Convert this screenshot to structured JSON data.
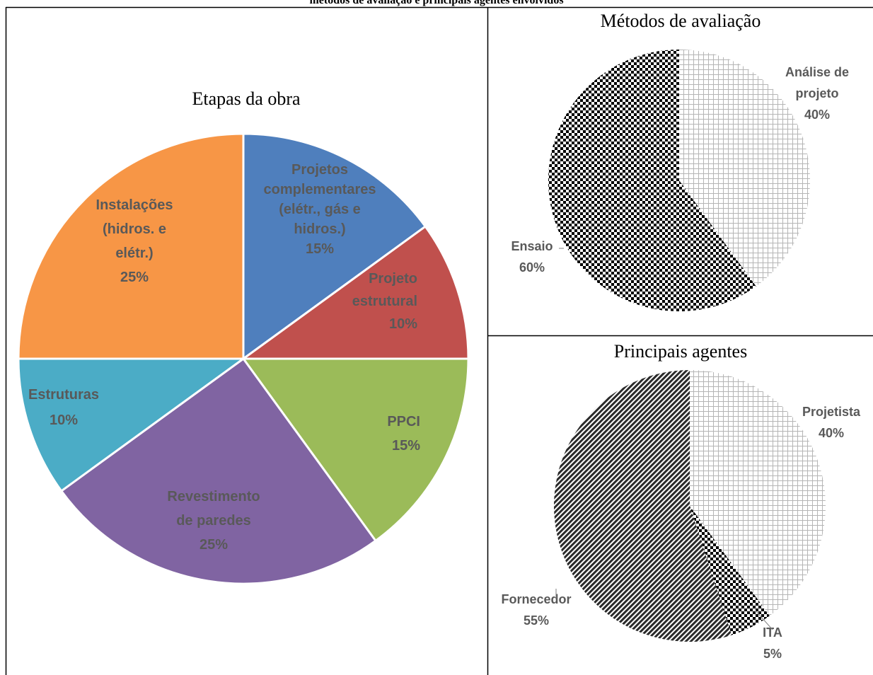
{
  "figure_caption": "métodos de avaliação e principais agentes envolvidos",
  "colors": {
    "projetos_complementares": "#4f7fbd",
    "projeto_estrutural": "#c0504d",
    "ppci": "#9bbb59",
    "revestimento": "#8064a2",
    "estruturas": "#4bacc6",
    "instalacoes": "#f79646",
    "label_text": "#595959"
  },
  "chart_data": [
    {
      "type": "pie",
      "title": "Etapas da obra",
      "slices": [
        {
          "lines": [
            "Projetos",
            "complementares",
            "(elétr., gás e",
            "hidros.)"
          ],
          "pct_label": "15%",
          "value": 15,
          "color": "#4f7fbd"
        },
        {
          "lines": [
            "Projeto",
            "estrutural"
          ],
          "pct_label": "10%",
          "value": 10,
          "color": "#c0504d"
        },
        {
          "lines": [
            "PPCI"
          ],
          "pct_label": "15%",
          "value": 15,
          "color": "#9bbb59"
        },
        {
          "lines": [
            "Revestimento",
            "de paredes"
          ],
          "pct_label": "25%",
          "value": 25,
          "color": "#8064a2"
        },
        {
          "lines": [
            "Estruturas"
          ],
          "pct_label": "10%",
          "value": 10,
          "color": "#4bacc6"
        },
        {
          "lines": [
            "Instalações",
            "(hidros. e",
            "elétr.)"
          ],
          "pct_label": "25%",
          "value": 25,
          "color": "#f79646"
        }
      ]
    },
    {
      "type": "pie",
      "title": "Métodos de avaliação",
      "slices": [
        {
          "lines": [
            "Análise de",
            "projeto"
          ],
          "pct_label": "40%",
          "value": 40,
          "pattern": "grid"
        },
        {
          "lines": [
            "Ensaio"
          ],
          "pct_label": "60%",
          "value": 60,
          "pattern": "checker"
        }
      ]
    },
    {
      "type": "pie",
      "title": "Principais agentes",
      "slices": [
        {
          "lines": [
            "Projetista"
          ],
          "pct_label": "40%",
          "value": 40,
          "pattern": "grid"
        },
        {
          "lines": [
            "ITA"
          ],
          "pct_label": "5%",
          "value": 5,
          "pattern": "checker"
        },
        {
          "lines": [
            "Fornecedor"
          ],
          "pct_label": "55%",
          "value": 55,
          "pattern": "diagonal"
        }
      ]
    }
  ]
}
